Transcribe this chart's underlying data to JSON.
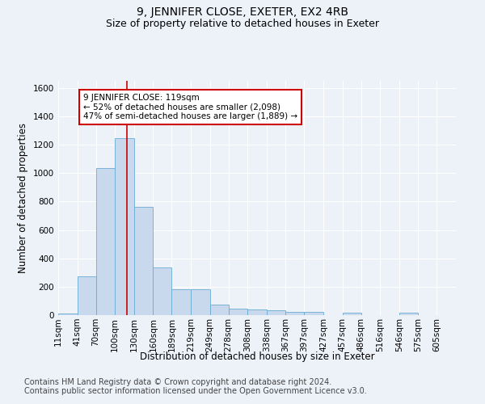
{
  "title": "9, JENNIFER CLOSE, EXETER, EX2 4RB",
  "subtitle": "Size of property relative to detached houses in Exeter",
  "xlabel": "Distribution of detached houses by size in Exeter",
  "ylabel": "Number of detached properties",
  "footnote1": "Contains HM Land Registry data © Crown copyright and database right 2024.",
  "footnote2": "Contains public sector information licensed under the Open Government Licence v3.0.",
  "annotation_line1": "9 JENNIFER CLOSE: 119sqm",
  "annotation_line2": "← 52% of detached houses are smaller (2,098)",
  "annotation_line3": "47% of semi-detached houses are larger (1,889) →",
  "property_size": 119,
  "bin_labels": [
    "11sqm",
    "41sqm",
    "70sqm",
    "100sqm",
    "130sqm",
    "160sqm",
    "189sqm",
    "219sqm",
    "249sqm",
    "278sqm",
    "308sqm",
    "338sqm",
    "367sqm",
    "397sqm",
    "427sqm",
    "457sqm",
    "486sqm",
    "516sqm",
    "546sqm",
    "575sqm",
    "605sqm"
  ],
  "bin_edges": [
    11,
    41,
    70,
    100,
    130,
    160,
    189,
    219,
    249,
    278,
    308,
    338,
    367,
    397,
    427,
    457,
    486,
    516,
    546,
    575,
    605
  ],
  "bar_values": [
    10,
    275,
    1035,
    1245,
    760,
    335,
    180,
    180,
    75,
    45,
    40,
    35,
    20,
    20,
    0,
    15,
    0,
    0,
    15,
    0,
    0
  ],
  "bar_color": "#c8d9ee",
  "bar_edge_color": "#6aabd2",
  "vline_color": "#cc0000",
  "vline_x": 119,
  "annotation_box_color": "#cc0000",
  "background_color": "#edf2f9",
  "plot_bg_color": "#edf2f9",
  "grid_color": "#ffffff",
  "ylim": [
    0,
    1650
  ],
  "yticks": [
    0,
    200,
    400,
    600,
    800,
    1000,
    1200,
    1400,
    1600
  ],
  "title_fontsize": 10,
  "subtitle_fontsize": 9,
  "axis_label_fontsize": 8.5,
  "tick_fontsize": 7.5,
  "annotation_fontsize": 7.5,
  "footnote_fontsize": 7
}
